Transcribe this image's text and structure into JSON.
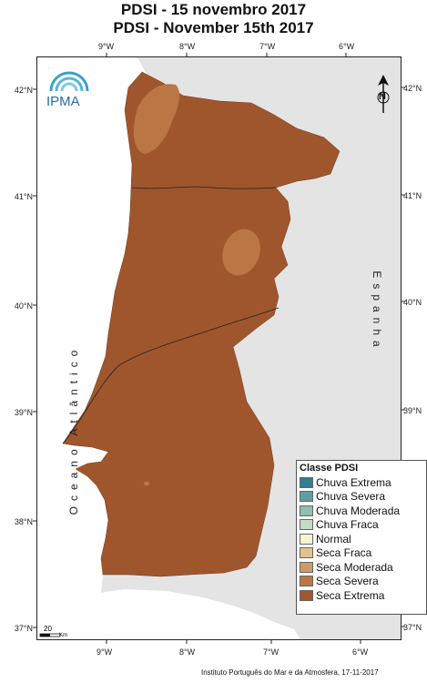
{
  "title": {
    "pt": "PDSI - 15 novembro 2017",
    "en": "PDSI - November 15th 2017"
  },
  "axes": {
    "lon_labels": [
      "9°W",
      "8°W",
      "7°W",
      "6°W"
    ],
    "lat_labels": [
      "42°N",
      "41°N",
      "40°N",
      "39°N",
      "38°N",
      "37°N"
    ]
  },
  "map": {
    "ocean_label": "Oceano Atlântico",
    "spain_label": "Espanha",
    "logo_text": "IPMA",
    "north_symbol": "N",
    "scale": {
      "value": "20",
      "unit": "Km"
    }
  },
  "legend": {
    "title": "Classe PDSI",
    "items": [
      {
        "label": "Chuva Extrema",
        "color": "#2f7f8f"
      },
      {
        "label": "Chuva Severa",
        "color": "#5f9ea3"
      },
      {
        "label": "Chuva Moderada",
        "color": "#92bfaf"
      },
      {
        "label": "Chuva Fraca",
        "color": "#c4dcbf"
      },
      {
        "label": "Normal",
        "color": "#f4f6cf"
      },
      {
        "label": "Seca Fraca",
        "color": "#e2c28f"
      },
      {
        "label": "Seca Moderada",
        "color": "#cf9a66"
      },
      {
        "label": "Seca Severa",
        "color": "#ba7745"
      },
      {
        "label": "Seca Extrema",
        "color": "#a0562d"
      }
    ]
  },
  "colors": {
    "land_portugal": "#a0562d",
    "land_spain": "#e4e4e4",
    "sea": "#ffffff",
    "seca_severa": "#ba7745"
  },
  "credit": "Instituto Português do Mar e da Atmosfera, 17-11-2017"
}
